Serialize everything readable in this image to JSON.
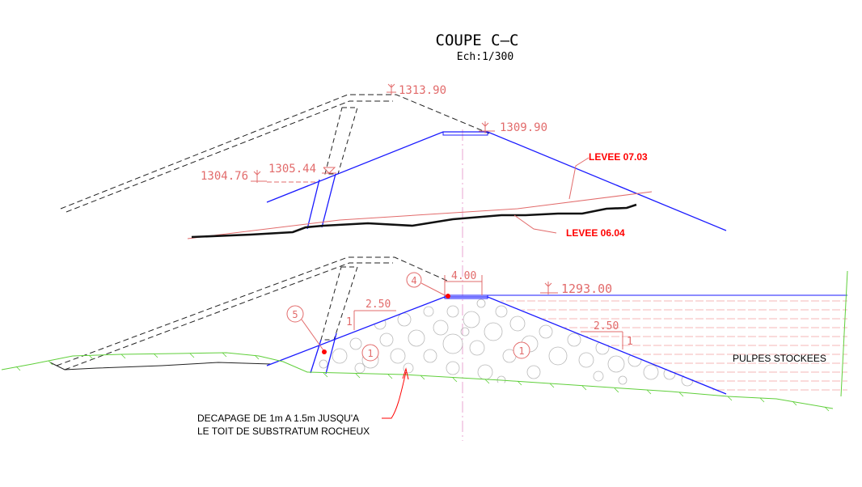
{
  "title": "COUPE C–C",
  "scale": "Ech:1/300",
  "colors": {
    "dam_outline": "#1a1aff",
    "dimension_red": "#e26b6b",
    "callout_red": "#ff0000",
    "ground_green": "#5fcf3a",
    "dashed_black": "#222222",
    "axis_pink": "#e9a6d0"
  },
  "upper_section": {
    "elev_top": "1313.90",
    "elev_crest": "1309.90",
    "elev_left_a": "1304.76",
    "elev_left_b": "1305.44",
    "levee_0703": "LEVEE 07.03",
    "levee_0604": "LEVEE 06.04"
  },
  "lower_section": {
    "crest_width": "4.00",
    "elev_water": "1293.00",
    "slope_left_h": "2.50",
    "slope_left_v": "1",
    "slope_right_h": "2.50",
    "slope_right_v": "1",
    "marker_4": "4",
    "marker_5": "5",
    "marker_1_left": "1",
    "marker_1_right": "1",
    "pulpes": "PULPES STOCKEES",
    "decapage_line1": "DECAPAGE DE 1m A 1.5m JUSQU'A",
    "decapage_line2": "LE TOIT DE SUBSTRATUM ROCHEUX"
  }
}
